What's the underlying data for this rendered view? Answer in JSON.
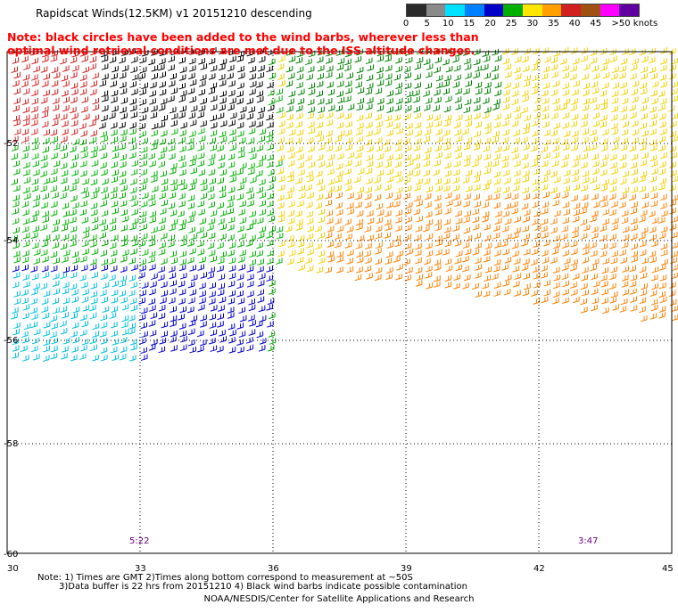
{
  "title": "Rapidscat Winds(12.5KM) v1 20151210 descending",
  "note": "Note: black circles have been added to the wind barbs, wherever less than optimal wind retrieval conditions are met due to the ISS altitude changes.",
  "scale": {
    "labels": [
      "0",
      "5",
      "10",
      "15",
      "20",
      "25",
      "30",
      "35",
      "40",
      "45",
      ">50 knots"
    ],
    "colors": [
      "#2b2b2b",
      "#8a8a8a",
      "#00e0ff",
      "#0080ff",
      "#0000c8",
      "#00b000",
      "#ffe600",
      "#ffa000",
      "#d02020",
      "#a05010",
      "#ff00ff",
      "#6000a0"
    ]
  },
  "axes": {
    "x_ticks": [
      "30",
      "33",
      "36",
      "39",
      "42",
      "45"
    ],
    "y_ticks": [
      "-52",
      "-54",
      "-56",
      "-58",
      "-60"
    ]
  },
  "times": [
    "5:22",
    "3:47"
  ],
  "footer": {
    "line1": "Note: 1) Times are GMT 2)Times along bottom correspond to measurement at ~50S",
    "line2": "3)Data buffer is 22 hrs from 20151210 4) Black wind barbs indicate possible contamination",
    "credit": "NOAA/NESDIS/Center for Satellite Applications and Research"
  }
}
